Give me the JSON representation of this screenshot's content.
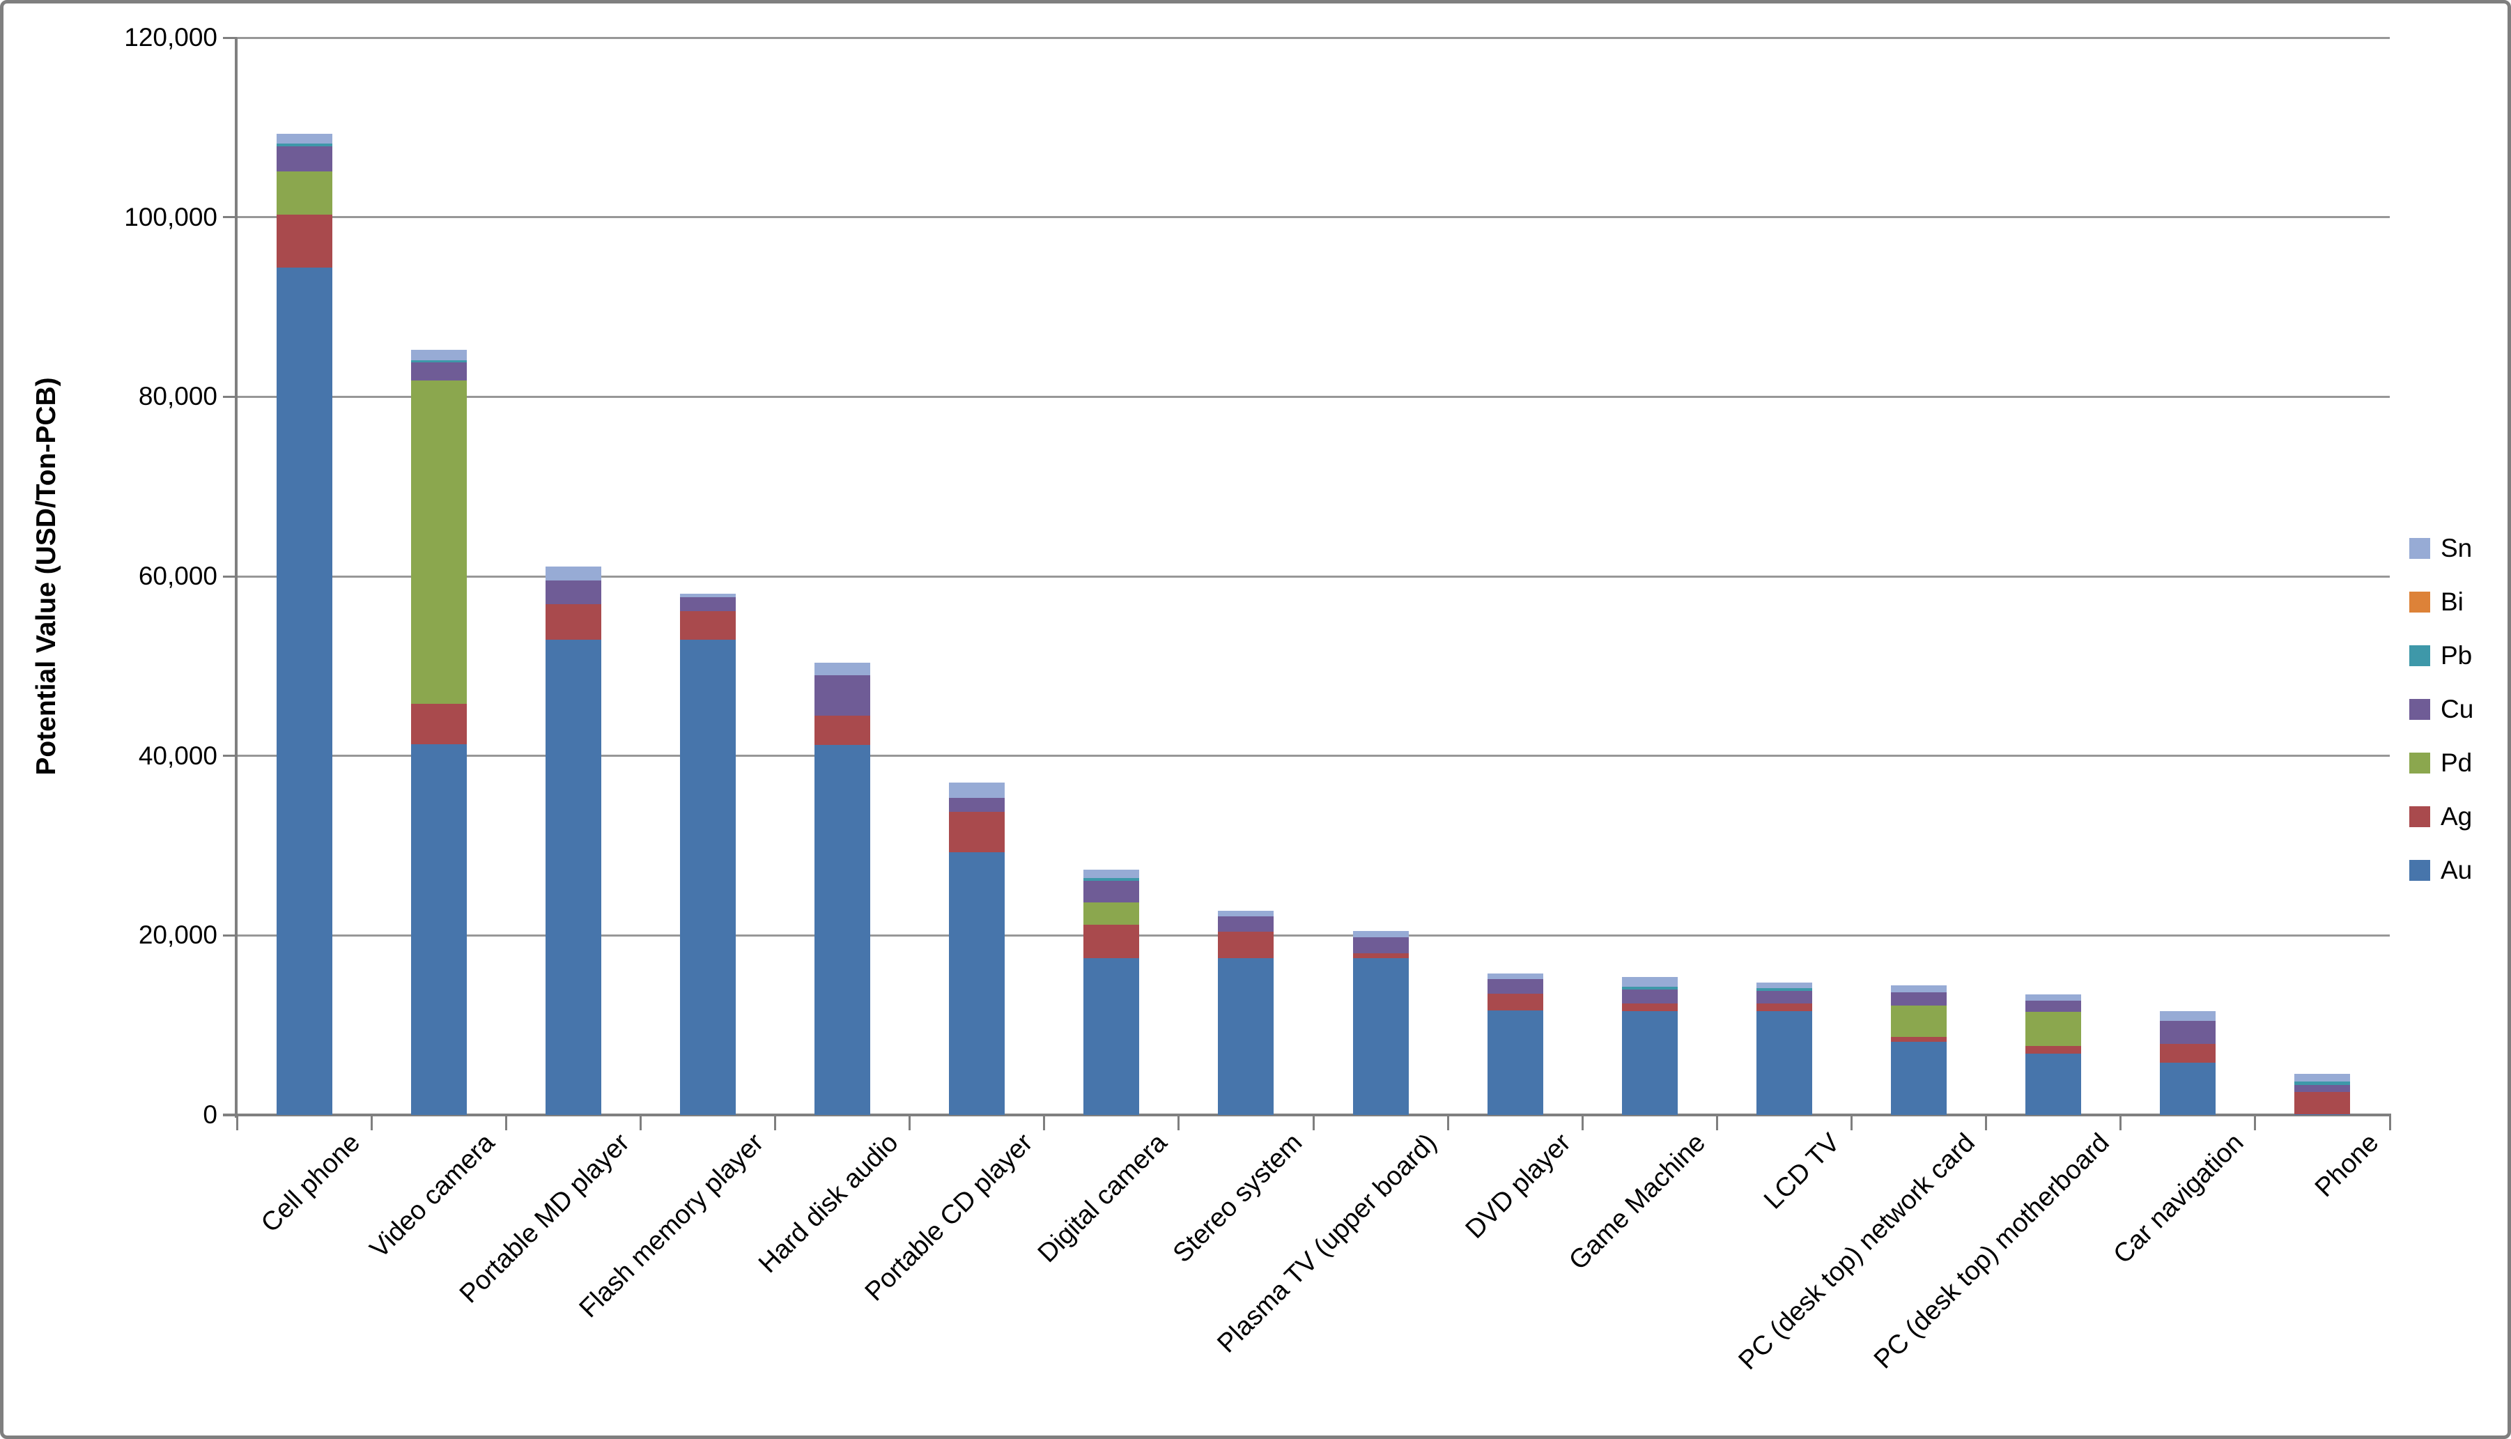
{
  "chart_data": {
    "type": "bar",
    "stacked": true,
    "title": "",
    "xlabel": "",
    "ylabel": "Potential Value (USD/Ton-PCB)",
    "ylim": [
      0,
      120000
    ],
    "ytick_interval": 20000,
    "ytick_labels": [
      "0",
      "20,000",
      "40,000",
      "60,000",
      "80,000",
      "100,000",
      "120,000"
    ],
    "grid": "horizontal",
    "legend_position": "right",
    "legend_order_top_to_bottom": [
      "Sn",
      "Bi",
      "Pb",
      "Cu",
      "Pd",
      "Ag",
      "Au"
    ],
    "categories": [
      "Cell phone",
      "Video camera",
      "Portable MD player",
      "Flash memory player",
      "Hard disk audio",
      "Portable CD player",
      "Digital camera",
      "Stereo system",
      "Plasma TV (upper board)",
      "DVD player",
      "Game Machine",
      "LCD TV",
      "PC (desk top) network card",
      "PC (desk top) motherboard",
      "Car navigation",
      "Phone"
    ],
    "series": [
      {
        "name": "Au",
        "color": "#4775AB",
        "values": [
          94400,
          41300,
          52900,
          52900,
          41200,
          29300,
          17500,
          17500,
          17450,
          11650,
          11600,
          11600,
          8150,
          6850,
          5850,
          100
        ]
      },
      {
        "name": "Ag",
        "color": "#A94A4D",
        "values": [
          5900,
          4500,
          4000,
          3200,
          3250,
          4450,
          3700,
          2900,
          550,
          1850,
          850,
          850,
          550,
          850,
          2100,
          2450
        ]
      },
      {
        "name": "Pd",
        "color": "#8BA74E",
        "values": [
          4800,
          36050,
          0,
          0,
          0,
          0,
          2500,
          0,
          0,
          0,
          0,
          0,
          3500,
          3750,
          0,
          0
        ]
      },
      {
        "name": "Cu",
        "color": "#6F5C96",
        "values": [
          2800,
          2000,
          2650,
          1600,
          4500,
          1600,
          2400,
          1700,
          1800,
          1600,
          1500,
          1350,
          1500,
          1300,
          2550,
          750
        ]
      },
      {
        "name": "Pb",
        "color": "#3E98A9",
        "values": [
          300,
          250,
          0,
          0,
          0,
          0,
          300,
          0,
          0,
          0,
          350,
          350,
          0,
          0,
          0,
          400
        ]
      },
      {
        "name": "Bi",
        "color": "#DD8238",
        "values": [
          0,
          0,
          0,
          0,
          0,
          0,
          0,
          0,
          0,
          0,
          0,
          0,
          0,
          0,
          0,
          0
        ]
      },
      {
        "name": "Sn",
        "color": "#97ABD5",
        "values": [
          1100,
          1100,
          1500,
          400,
          1400,
          1700,
          900,
          650,
          700,
          650,
          1050,
          600,
          750,
          650,
          1050,
          850
        ]
      }
    ],
    "totals": [
      109300,
      85200,
      61050,
      58100,
      50350,
      37050,
      27300,
      22750,
      20500,
      15750,
      15350,
      14750,
      14450,
      13400,
      11550,
      4550
    ]
  }
}
